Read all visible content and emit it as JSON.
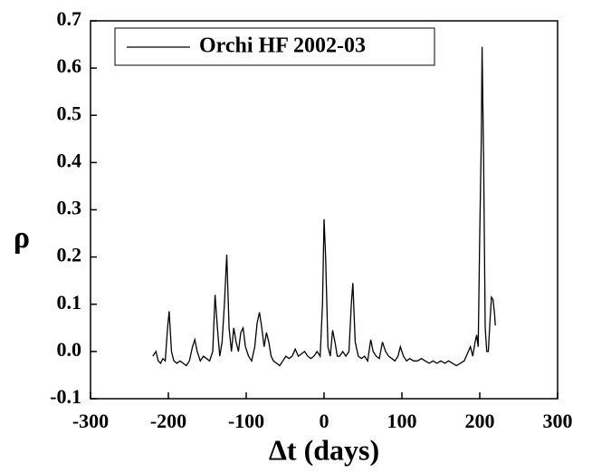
{
  "chart_data": {
    "type": "line",
    "xlabel": "Δt (days)",
    "ylabel": "ρ",
    "x": [
      -220,
      -216,
      -213,
      -210,
      -207,
      -204,
      -201,
      -199,
      -196,
      -193,
      -189,
      -185,
      -181,
      -177,
      -173,
      -169,
      -166,
      -163,
      -159,
      -155,
      -151,
      -147,
      -143,
      -140,
      -137,
      -134,
      -131,
      -128,
      -125,
      -122,
      -119,
      -116,
      -113,
      -110,
      -107,
      -104,
      -101,
      -97,
      -93,
      -89,
      -86,
      -83,
      -80,
      -77,
      -74,
      -71,
      -68,
      -65,
      -61,
      -57,
      -53,
      -49,
      -45,
      -41,
      -37,
      -33,
      -29,
      -25,
      -21,
      -17,
      -13,
      -9,
      -5,
      -2,
      0,
      2,
      5,
      8,
      11,
      14,
      17,
      20,
      24,
      28,
      32,
      35,
      37,
      40,
      44,
      48,
      52,
      56,
      60,
      63,
      67,
      71,
      75,
      79,
      83,
      87,
      91,
      95,
      98,
      102,
      106,
      110,
      115,
      120,
      125,
      130,
      135,
      140,
      145,
      150,
      155,
      160,
      165,
      170,
      175,
      180,
      184,
      188,
      191,
      194,
      196,
      198,
      200,
      202,
      203,
      205,
      207,
      209,
      211,
      213,
      215,
      217,
      219,
      220
    ],
    "series": [
      {
        "name": "Orchi HF 2002-03",
        "color": "#000000",
        "values": [
          -0.01,
          0.0,
          -0.02,
          -0.025,
          -0.015,
          -0.02,
          0.05,
          0.085,
          0.0,
          -0.02,
          -0.025,
          -0.02,
          -0.025,
          -0.03,
          -0.02,
          0.01,
          0.025,
          0.0,
          -0.02,
          -0.01,
          -0.015,
          -0.02,
          0.0,
          0.12,
          0.05,
          -0.01,
          0.02,
          0.1,
          0.205,
          0.05,
          0.0,
          0.05,
          0.02,
          0.0,
          0.04,
          0.05,
          0.01,
          -0.01,
          -0.02,
          0.01,
          0.06,
          0.083,
          0.05,
          0.01,
          0.04,
          0.02,
          -0.01,
          -0.02,
          -0.025,
          -0.03,
          -0.02,
          -0.01,
          -0.015,
          -0.01,
          0.005,
          -0.01,
          -0.005,
          0.0,
          -0.01,
          -0.015,
          -0.01,
          0.0,
          -0.01,
          0.1,
          0.28,
          0.2,
          0.01,
          -0.01,
          0.045,
          0.02,
          -0.01,
          -0.01,
          0.0,
          -0.01,
          0.0,
          0.1,
          0.145,
          0.02,
          -0.01,
          -0.015,
          -0.01,
          -0.02,
          0.025,
          0.0,
          -0.01,
          -0.015,
          0.02,
          0.0,
          -0.01,
          -0.015,
          -0.02,
          -0.01,
          0.01,
          -0.01,
          -0.02,
          -0.015,
          -0.02,
          -0.02,
          -0.015,
          -0.02,
          -0.025,
          -0.02,
          -0.025,
          -0.02,
          -0.025,
          -0.02,
          -0.025,
          -0.03,
          -0.025,
          -0.02,
          -0.005,
          0.01,
          -0.01,
          0.02,
          0.035,
          0.01,
          0.25,
          0.45,
          0.645,
          0.4,
          0.05,
          0.0,
          0.0,
          0.06,
          0.115,
          0.11,
          0.08,
          0.055
        ]
      }
    ],
    "xlim": [
      -300,
      300
    ],
    "xticks": [
      -300,
      -200,
      -100,
      0,
      100,
      200,
      300
    ],
    "ylim": [
      -0.1,
      0.7
    ],
    "yticks": [
      -0.1,
      {
        "value": 0,
        "label": "0.0"
      },
      0.1,
      0.2,
      0.3,
      0.4,
      0.5,
      0.6,
      0.7
    ],
    "legend": "upper left"
  }
}
